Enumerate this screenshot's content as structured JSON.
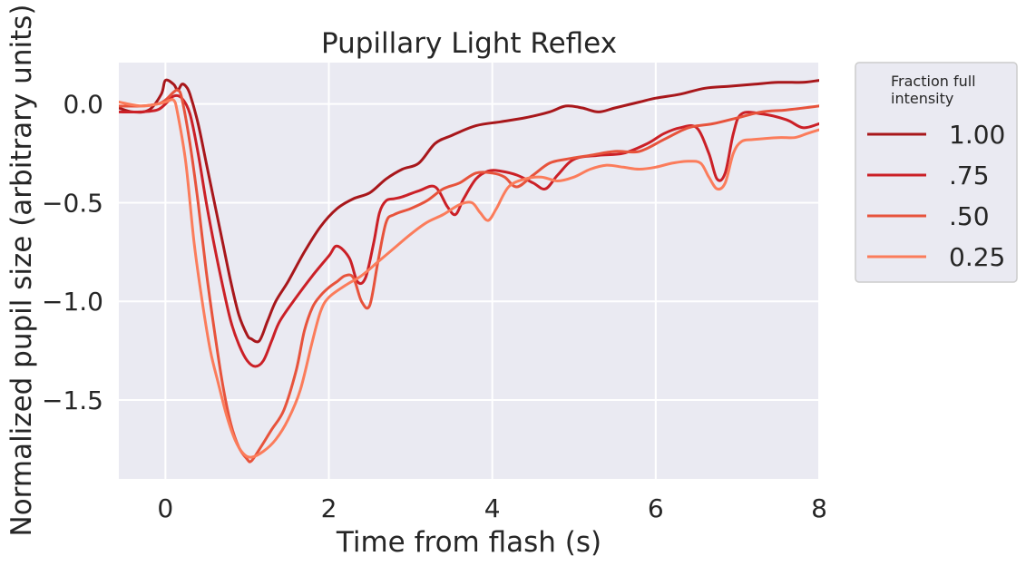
{
  "chart_data": {
    "type": "line",
    "title": "Pupillary Light Reflex",
    "xlabel": "Time from flash (s)",
    "ylabel": "Normalized pupil size (arbitrary units)",
    "xlim": [
      -0.57,
      8.0
    ],
    "ylim": [
      -1.9,
      0.21
    ],
    "xticks": [
      0,
      2,
      4,
      6,
      8
    ],
    "xtick_labels": [
      "0",
      "2",
      "4",
      "6",
      "8"
    ],
    "yticks": [
      0.0,
      -0.5,
      -1.0,
      -1.5
    ],
    "ytick_labels": [
      "0.0",
      "−0.5",
      "−1.0",
      "−1.5"
    ],
    "grid": true,
    "background": "#eaeaf2",
    "legend": {
      "title": "Fraction full\nintensity",
      "placement": "outside-right"
    },
    "series": [
      {
        "name": "1.00",
        "color": "#a8171b",
        "points": [
          [
            -0.57,
            -0.02
          ],
          [
            -0.4,
            -0.04
          ],
          [
            -0.2,
            -0.03
          ],
          [
            -0.05,
            0.05
          ],
          [
            0.0,
            0.12
          ],
          [
            0.1,
            0.1
          ],
          [
            0.15,
            0.07
          ],
          [
            0.2,
            0.1
          ],
          [
            0.25,
            0.09
          ],
          [
            0.3,
            0.05
          ],
          [
            0.4,
            -0.1
          ],
          [
            0.5,
            -0.3
          ],
          [
            0.6,
            -0.5
          ],
          [
            0.7,
            -0.7
          ],
          [
            0.8,
            -0.9
          ],
          [
            0.9,
            -1.07
          ],
          [
            1.0,
            -1.17
          ],
          [
            1.05,
            -1.19
          ],
          [
            1.15,
            -1.2
          ],
          [
            1.25,
            -1.1
          ],
          [
            1.35,
            -1.0
          ],
          [
            1.5,
            -0.9
          ],
          [
            1.7,
            -0.75
          ],
          [
            1.9,
            -0.62
          ],
          [
            2.1,
            -0.53
          ],
          [
            2.3,
            -0.48
          ],
          [
            2.5,
            -0.45
          ],
          [
            2.7,
            -0.38
          ],
          [
            2.9,
            -0.33
          ],
          [
            3.1,
            -0.3
          ],
          [
            3.3,
            -0.2
          ],
          [
            3.5,
            -0.16
          ],
          [
            3.8,
            -0.11
          ],
          [
            4.1,
            -0.09
          ],
          [
            4.4,
            -0.07
          ],
          [
            4.7,
            -0.04
          ],
          [
            4.9,
            -0.01
          ],
          [
            5.1,
            -0.02
          ],
          [
            5.3,
            -0.04
          ],
          [
            5.5,
            -0.02
          ],
          [
            5.8,
            0.01
          ],
          [
            6.0,
            0.03
          ],
          [
            6.3,
            0.05
          ],
          [
            6.6,
            0.08
          ],
          [
            6.9,
            0.09
          ],
          [
            7.2,
            0.1
          ],
          [
            7.5,
            0.11
          ],
          [
            7.8,
            0.11
          ],
          [
            8.0,
            0.12
          ]
        ]
      },
      {
        "name": ".75",
        "color": "#cb2027",
        "points": [
          [
            -0.57,
            -0.04
          ],
          [
            -0.3,
            -0.04
          ],
          [
            -0.1,
            -0.03
          ],
          [
            0.0,
            0.0
          ],
          [
            0.1,
            0.04
          ],
          [
            0.2,
            0.03
          ],
          [
            0.3,
            -0.05
          ],
          [
            0.4,
            -0.25
          ],
          [
            0.5,
            -0.5
          ],
          [
            0.6,
            -0.72
          ],
          [
            0.7,
            -0.92
          ],
          [
            0.8,
            -1.1
          ],
          [
            0.9,
            -1.22
          ],
          [
            1.0,
            -1.3
          ],
          [
            1.1,
            -1.33
          ],
          [
            1.2,
            -1.3
          ],
          [
            1.3,
            -1.2
          ],
          [
            1.4,
            -1.1
          ],
          [
            1.6,
            -0.98
          ],
          [
            1.8,
            -0.87
          ],
          [
            2.0,
            -0.77
          ],
          [
            2.1,
            -0.72
          ],
          [
            2.25,
            -0.78
          ],
          [
            2.35,
            -0.9
          ],
          [
            2.45,
            -0.88
          ],
          [
            2.55,
            -0.7
          ],
          [
            2.62,
            -0.55
          ],
          [
            2.7,
            -0.49
          ],
          [
            2.8,
            -0.48
          ],
          [
            2.9,
            -0.47
          ],
          [
            3.1,
            -0.44
          ],
          [
            3.3,
            -0.42
          ],
          [
            3.45,
            -0.52
          ],
          [
            3.55,
            -0.56
          ],
          [
            3.65,
            -0.48
          ],
          [
            3.8,
            -0.38
          ],
          [
            3.95,
            -0.34
          ],
          [
            4.1,
            -0.34
          ],
          [
            4.3,
            -0.36
          ],
          [
            4.5,
            -0.4
          ],
          [
            4.65,
            -0.43
          ],
          [
            4.8,
            -0.36
          ],
          [
            5.0,
            -0.28
          ],
          [
            5.3,
            -0.26
          ],
          [
            5.6,
            -0.25
          ],
          [
            5.9,
            -0.2
          ],
          [
            6.1,
            -0.15
          ],
          [
            6.3,
            -0.12
          ],
          [
            6.5,
            -0.12
          ],
          [
            6.65,
            -0.25
          ],
          [
            6.75,
            -0.38
          ],
          [
            6.85,
            -0.35
          ],
          [
            6.95,
            -0.15
          ],
          [
            7.05,
            -0.05
          ],
          [
            7.3,
            -0.05
          ],
          [
            7.6,
            -0.08
          ],
          [
            7.8,
            -0.12
          ],
          [
            8.0,
            -0.1
          ]
        ]
      },
      {
        "name": ".50",
        "color": "#e7533c",
        "points": [
          [
            -0.57,
            -0.01
          ],
          [
            -0.3,
            -0.01
          ],
          [
            -0.1,
            0.0
          ],
          [
            0.0,
            0.02
          ],
          [
            0.1,
            0.06
          ],
          [
            0.15,
            0.07
          ],
          [
            0.2,
            0.03
          ],
          [
            0.3,
            -0.2
          ],
          [
            0.4,
            -0.5
          ],
          [
            0.5,
            -0.85
          ],
          [
            0.6,
            -1.15
          ],
          [
            0.7,
            -1.42
          ],
          [
            0.8,
            -1.62
          ],
          [
            0.9,
            -1.74
          ],
          [
            1.0,
            -1.8
          ],
          [
            1.05,
            -1.81
          ],
          [
            1.15,
            -1.75
          ],
          [
            1.3,
            -1.65
          ],
          [
            1.45,
            -1.55
          ],
          [
            1.6,
            -1.35
          ],
          [
            1.7,
            -1.15
          ],
          [
            1.8,
            -1.03
          ],
          [
            1.9,
            -0.97
          ],
          [
            2.0,
            -0.93
          ],
          [
            2.1,
            -0.9
          ],
          [
            2.2,
            -0.87
          ],
          [
            2.3,
            -0.88
          ],
          [
            2.4,
            -1.0
          ],
          [
            2.5,
            -1.02
          ],
          [
            2.6,
            -0.8
          ],
          [
            2.7,
            -0.6
          ],
          [
            2.8,
            -0.56
          ],
          [
            3.0,
            -0.53
          ],
          [
            3.2,
            -0.49
          ],
          [
            3.4,
            -0.43
          ],
          [
            3.6,
            -0.4
          ],
          [
            3.8,
            -0.35
          ],
          [
            4.0,
            -0.35
          ],
          [
            4.15,
            -0.37
          ],
          [
            4.3,
            -0.42
          ],
          [
            4.5,
            -0.36
          ],
          [
            4.7,
            -0.3
          ],
          [
            4.9,
            -0.28
          ],
          [
            5.2,
            -0.26
          ],
          [
            5.5,
            -0.24
          ],
          [
            5.8,
            -0.24
          ],
          [
            6.1,
            -0.18
          ],
          [
            6.4,
            -0.12
          ],
          [
            6.7,
            -0.1
          ],
          [
            7.0,
            -0.07
          ],
          [
            7.3,
            -0.04
          ],
          [
            7.6,
            -0.03
          ],
          [
            8.0,
            -0.01
          ]
        ]
      },
      {
        "name": "0.25",
        "color": "#fb7c5b",
        "points": [
          [
            -0.57,
            0.01
          ],
          [
            -0.3,
            -0.01
          ],
          [
            -0.1,
            0.0
          ],
          [
            0.0,
            0.01
          ],
          [
            0.1,
            0.02
          ],
          [
            0.15,
            -0.05
          ],
          [
            0.25,
            -0.3
          ],
          [
            0.35,
            -0.7
          ],
          [
            0.45,
            -1.0
          ],
          [
            0.55,
            -1.25
          ],
          [
            0.65,
            -1.42
          ],
          [
            0.75,
            -1.58
          ],
          [
            0.85,
            -1.7
          ],
          [
            0.95,
            -1.77
          ],
          [
            1.05,
            -1.79
          ],
          [
            1.2,
            -1.76
          ],
          [
            1.35,
            -1.7
          ],
          [
            1.5,
            -1.6
          ],
          [
            1.65,
            -1.45
          ],
          [
            1.8,
            -1.2
          ],
          [
            1.9,
            -1.05
          ],
          [
            2.0,
            -0.98
          ],
          [
            2.2,
            -0.92
          ],
          [
            2.4,
            -0.87
          ],
          [
            2.6,
            -0.8
          ],
          [
            2.8,
            -0.73
          ],
          [
            3.0,
            -0.66
          ],
          [
            3.2,
            -0.6
          ],
          [
            3.4,
            -0.56
          ],
          [
            3.6,
            -0.51
          ],
          [
            3.75,
            -0.5
          ],
          [
            3.85,
            -0.55
          ],
          [
            3.95,
            -0.59
          ],
          [
            4.05,
            -0.53
          ],
          [
            4.2,
            -0.42
          ],
          [
            4.4,
            -0.38
          ],
          [
            4.6,
            -0.37
          ],
          [
            4.8,
            -0.39
          ],
          [
            5.0,
            -0.37
          ],
          [
            5.2,
            -0.33
          ],
          [
            5.4,
            -0.31
          ],
          [
            5.6,
            -0.32
          ],
          [
            5.8,
            -0.33
          ],
          [
            6.0,
            -0.32
          ],
          [
            6.2,
            -0.3
          ],
          [
            6.4,
            -0.29
          ],
          [
            6.55,
            -0.3
          ],
          [
            6.65,
            -0.37
          ],
          [
            6.75,
            -0.43
          ],
          [
            6.85,
            -0.4
          ],
          [
            6.95,
            -0.25
          ],
          [
            7.05,
            -0.19
          ],
          [
            7.2,
            -0.18
          ],
          [
            7.5,
            -0.17
          ],
          [
            7.7,
            -0.17
          ],
          [
            7.85,
            -0.15
          ],
          [
            8.0,
            -0.13
          ]
        ]
      }
    ]
  }
}
